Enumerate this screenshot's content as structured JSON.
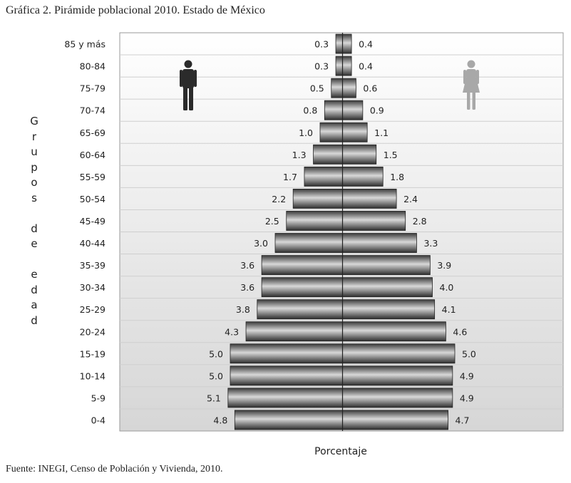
{
  "title": "Gráfica 2. Pirámide poblacional 2010. Estado de México",
  "source": "Fuente: INEGI, Censo de Población y Vivienda, 2010.",
  "icons": {
    "male": "male-figure-icon",
    "female": "female-figure-icon"
  },
  "colors": {
    "bar_dark": "#3a3a3a",
    "bar_light": "#d8d8d8",
    "grid": "#cfcfcf",
    "male_icon": "#2b2b2b",
    "female_icon": "#a8a8a8"
  },
  "chart_data": {
    "type": "bar",
    "orientation": "horizontal-pyramid",
    "ylabel": "Grupos de edad",
    "xlabel": "Porcentaje",
    "categories": [
      "85 y más",
      "80-84",
      "75-79",
      "70-74",
      "65-69",
      "60-64",
      "55-59",
      "50-54",
      "45-49",
      "40-44",
      "35-39",
      "30-34",
      "25-29",
      "20-24",
      "15-19",
      "10-14",
      "5-9",
      "0-4"
    ],
    "series": [
      {
        "values": [
          0.3,
          0.3,
          0.5,
          0.8,
          1.0,
          1.3,
          1.7,
          2.2,
          2.5,
          3.0,
          3.6,
          3.6,
          3.8,
          4.3,
          5.0,
          5.0,
          5.1,
          4.8
        ]
      },
      {
        "values": [
          0.4,
          0.4,
          0.6,
          0.9,
          1.1,
          1.5,
          1.8,
          2.4,
          2.8,
          3.3,
          3.9,
          4.0,
          4.1,
          4.6,
          5.0,
          4.9,
          4.9,
          4.7
        ]
      }
    ],
    "value_labels_male": [
      "0.3",
      "0.3",
      "0.5",
      "0.8",
      "1.0",
      "1.3",
      "1.7",
      "2.2",
      "2.5",
      "3.0",
      "3.6",
      "3.6",
      "3.8",
      "4.3",
      "5.0",
      "5.0",
      "5.1",
      "4.8"
    ],
    "value_labels_female": [
      "0.4",
      "0.4",
      "0.6",
      "0.9",
      "1.1",
      "1.5",
      "1.8",
      "2.4",
      "2.8",
      "3.3",
      "3.9",
      "4.0",
      "4.1",
      "4.6",
      "5.0",
      "4.9",
      "4.9",
      "4.7"
    ],
    "grid": true
  }
}
